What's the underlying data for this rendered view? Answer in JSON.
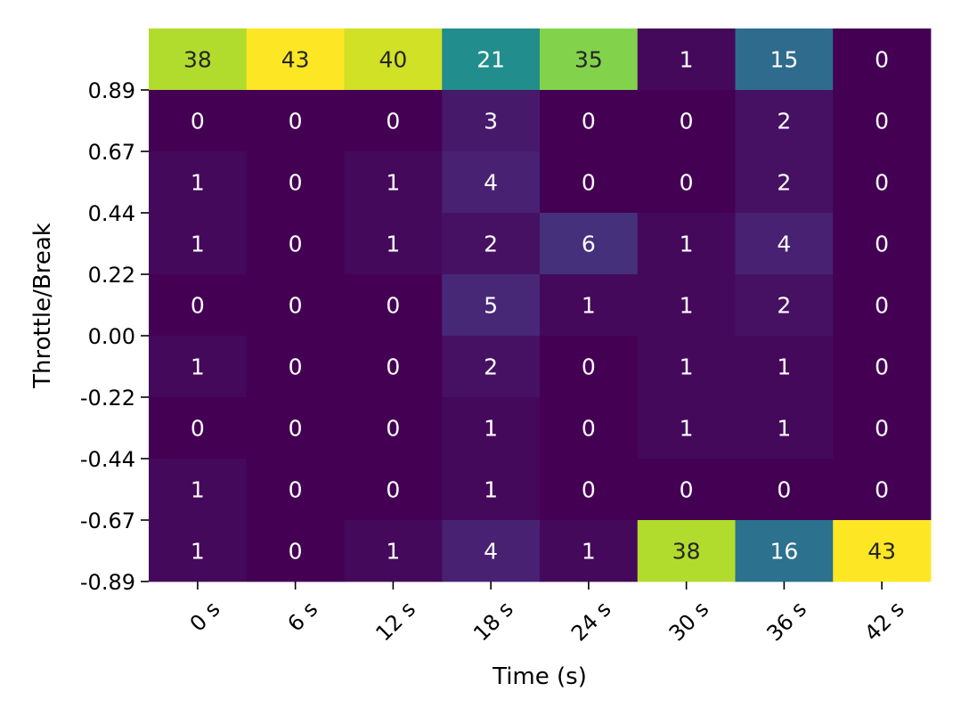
{
  "chart_data": {
    "type": "heatmap",
    "title": "",
    "xlabel": "Time (s)",
    "ylabel": "Throttle/Break",
    "x_tick_labels": [
      "0 s",
      "6 s",
      "12 s",
      "18 s",
      "24 s",
      "30 s",
      "36 s",
      "42 s"
    ],
    "y_tick_labels": [
      "0.89",
      "0.67",
      "0.44",
      "0.22",
      "0.00",
      "-0.22",
      "-0.44",
      "-0.67",
      "-0.89"
    ],
    "colormap": "viridis",
    "value_range": [
      0,
      43
    ],
    "values": [
      [
        38,
        43,
        40,
        21,
        35,
        1,
        15,
        0
      ],
      [
        0,
        0,
        0,
        3,
        0,
        0,
        2,
        0
      ],
      [
        1,
        0,
        1,
        4,
        0,
        0,
        2,
        0
      ],
      [
        1,
        0,
        1,
        2,
        6,
        1,
        4,
        0
      ],
      [
        0,
        0,
        0,
        5,
        1,
        1,
        2,
        0
      ],
      [
        1,
        0,
        0,
        2,
        0,
        1,
        1,
        0
      ],
      [
        0,
        0,
        0,
        1,
        0,
        1,
        1,
        0
      ],
      [
        1,
        0,
        0,
        1,
        0,
        0,
        0,
        0
      ],
      [
        1,
        0,
        1,
        4,
        1,
        38,
        16,
        43
      ]
    ]
  }
}
